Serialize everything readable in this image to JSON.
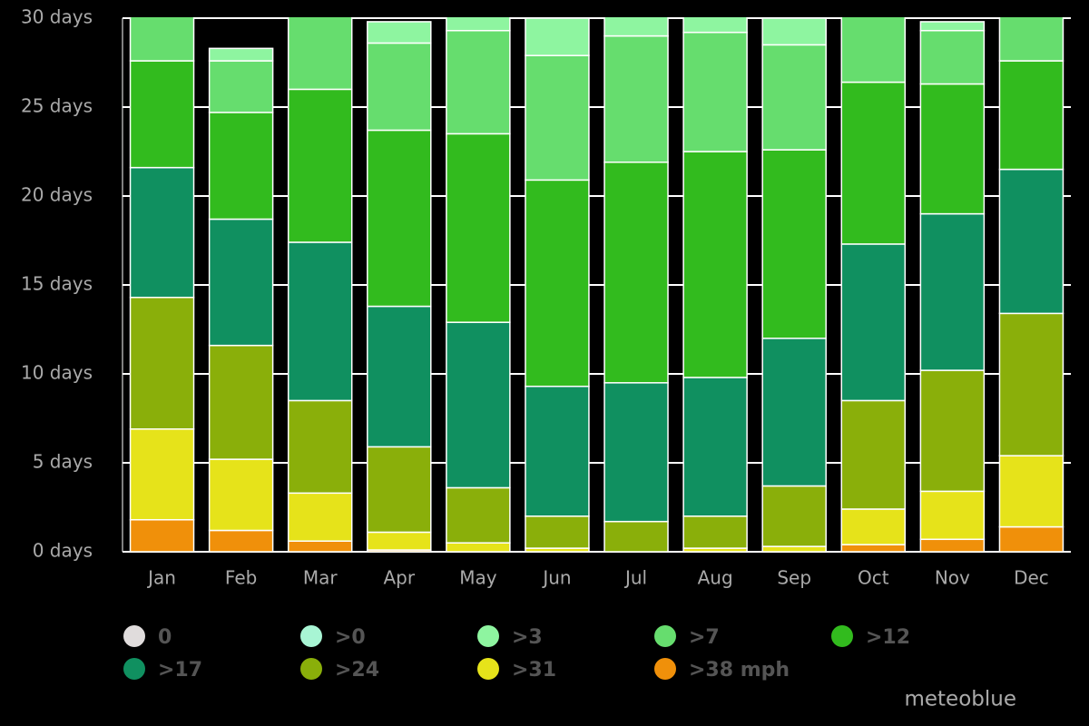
{
  "chart_data": {
    "type": "stacked-bar",
    "categories": [
      "Jan",
      "Feb",
      "Mar",
      "Apr",
      "May",
      "Jun",
      "Jul",
      "Aug",
      "Sep",
      "Oct",
      "Nov",
      "Dec"
    ],
    "series": [
      {
        "name": "0",
        "color": "#e0dcdc",
        "values": [
          0,
          0,
          0,
          0,
          0,
          0,
          0,
          0,
          0,
          0,
          0,
          0
        ]
      },
      {
        "name": ">0",
        "color": "#a8f5d4",
        "values": [
          0,
          0,
          0,
          0,
          0,
          0,
          0,
          0,
          0,
          0,
          0,
          0
        ]
      },
      {
        "name": ">3",
        "color": "#8ef5a0",
        "values": [
          0,
          0.7,
          0,
          1.2,
          1.7,
          2.1,
          2.0,
          1.8,
          1.5,
          0,
          0.5,
          0
        ]
      },
      {
        "name": ">7",
        "color": "#66dd6e",
        "values": [
          3.4,
          2.9,
          5.0,
          4.9,
          5.8,
          7.0,
          7.1,
          6.7,
          5.9,
          4.6,
          3.0,
          3.4
        ]
      },
      {
        "name": ">12",
        "color": "#32bb1e",
        "values": [
          6.0,
          6.0,
          8.6,
          9.9,
          10.6,
          11.6,
          12.4,
          12.7,
          10.6,
          9.1,
          7.3,
          6.1
        ]
      },
      {
        "name": ">17",
        "color": "#109060",
        "values": [
          7.3,
          7.1,
          8.9,
          7.9,
          9.3,
          7.3,
          7.8,
          7.8,
          8.3,
          8.8,
          8.8,
          8.1
        ]
      },
      {
        "name": ">24",
        "color": "#8aaf0a",
        "values": [
          7.4,
          6.4,
          5.2,
          4.8,
          3.1,
          1.8,
          1.7,
          1.8,
          3.4,
          6.1,
          6.8,
          8.0
        ]
      },
      {
        "name": ">31",
        "color": "#e6e31a",
        "values": [
          5.1,
          4.0,
          2.7,
          1.0,
          0.5,
          0.2,
          0,
          0.2,
          0.3,
          2.0,
          2.7,
          4.0
        ]
      },
      {
        "name": ">38 mph",
        "color": "#f0900a",
        "values": [
          1.8,
          1.2,
          0.6,
          0.1,
          0,
          0,
          0,
          0,
          0,
          0.4,
          0.7,
          1.4
        ]
      }
    ],
    "ylim": [
      0,
      30
    ],
    "yticks": [
      {
        "value": 0,
        "label": "0 days"
      },
      {
        "value": 5,
        "label": "5 days"
      },
      {
        "value": 10,
        "label": "10 days"
      },
      {
        "value": 15,
        "label": "15 days"
      },
      {
        "value": 20,
        "label": "20 days"
      },
      {
        "value": 25,
        "label": "25 days"
      },
      {
        "value": 30,
        "label": "30 days"
      }
    ],
    "grid": true,
    "credit": "meteoblue"
  }
}
